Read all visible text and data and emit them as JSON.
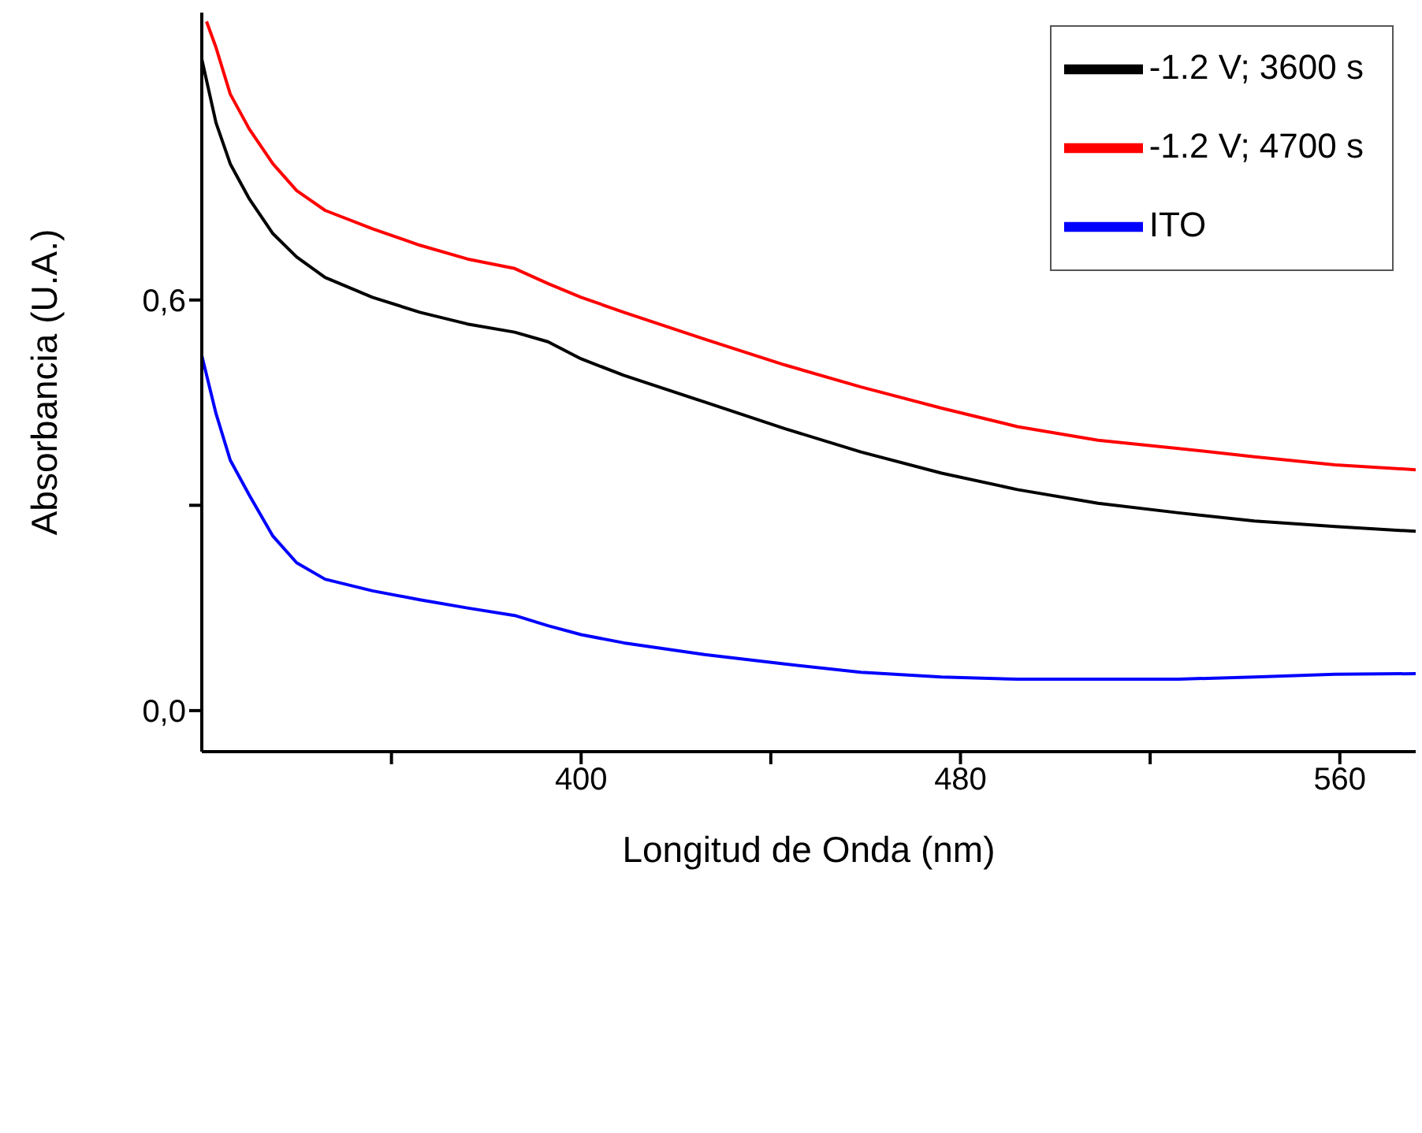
{
  "chart_data": {
    "type": "line",
    "xlabel": "Longitud de Onda (nm)",
    "ylabel": "Absorbancia (U.A.)",
    "x": [
      320,
      323,
      326,
      330,
      335,
      340,
      346,
      356,
      366,
      376,
      386,
      393,
      400,
      409,
      426,
      443,
      459,
      476,
      492,
      509,
      526,
      542,
      559,
      576
    ],
    "series": [
      {
        "name": "-1.2 V; 3600 s",
        "color": "#000000",
        "values": [
          0.952,
          0.859,
          0.799,
          0.748,
          0.697,
          0.663,
          0.633,
          0.604,
          0.582,
          0.565,
          0.553,
          0.539,
          0.514,
          0.49,
          0.451,
          0.412,
          0.378,
          0.347,
          0.323,
          0.303,
          0.289,
          0.277,
          0.269,
          0.262
        ]
      },
      {
        "name": "-1.2 V; 4700 s",
        "color": "#ff0000",
        "x": [
          321,
          323,
          326,
          330,
          335,
          340,
          346,
          356,
          366,
          376,
          386,
          393,
          400,
          409,
          426,
          443,
          459,
          476,
          492,
          509,
          526,
          542,
          559,
          576
        ],
        "values": [
          1.007,
          0.969,
          0.901,
          0.85,
          0.799,
          0.76,
          0.731,
          0.704,
          0.68,
          0.66,
          0.646,
          0.624,
          0.604,
          0.582,
          0.543,
          0.505,
          0.473,
          0.442,
          0.415,
          0.395,
          0.383,
          0.371,
          0.359,
          0.352
        ]
      },
      {
        "name": "ITO",
        "color": "#0000ff",
        "values": [
          0.519,
          0.434,
          0.366,
          0.315,
          0.255,
          0.216,
          0.192,
          0.175,
          0.162,
          0.15,
          0.139,
          0.124,
          0.111,
          0.099,
          0.082,
          0.068,
          0.056,
          0.049,
          0.046,
          0.046,
          0.046,
          0.049,
          0.053,
          0.054
        ]
      }
    ],
    "xlim": [
      320,
      576
    ],
    "xticks": [
      {
        "value": 360,
        "label": null
      },
      400,
      {
        "value": 440,
        "label": null
      },
      480,
      {
        "value": 520,
        "label": null
      },
      560
    ],
    "ylim": [
      -0.06,
      1.02
    ],
    "yticks": [
      {
        "value": 0,
        "label": "0,0"
      },
      {
        "value": 0.3,
        "label": null
      },
      {
        "value": 0.6,
        "label": "0,6"
      }
    ],
    "grid": false,
    "legend": "top right",
    "marker": "none",
    "line_style": "solid"
  }
}
